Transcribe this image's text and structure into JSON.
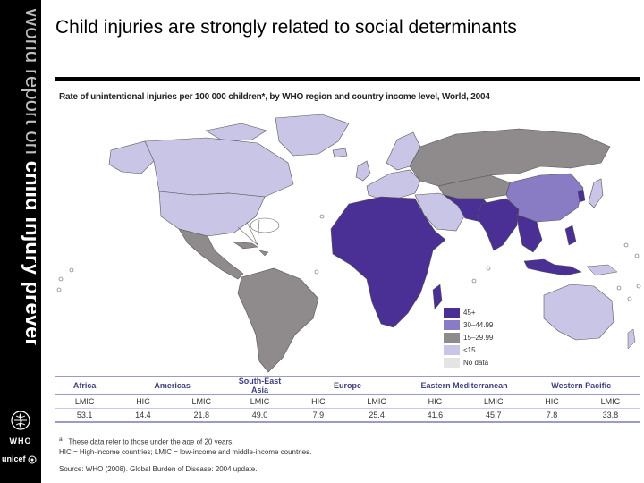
{
  "slide": {
    "title": "Child injuries are strongly related to social determinants"
  },
  "sidebar": {
    "title_part1": "World report on ",
    "title_part2": "child injury prevention",
    "who_label": "WHO",
    "unicef_label": "unicef"
  },
  "figure": {
    "title": "Rate of unintentional injuries per 100 000 children*, by WHO region and country income level, World, 2004",
    "legend": [
      {
        "label": "45+",
        "color": "#4a2f94"
      },
      {
        "label": "30–44.99",
        "color": "#8a7cc4"
      },
      {
        "label": "15–29.99",
        "color": "#8f8a8c"
      },
      {
        "label": "<15",
        "color": "#c9c5e6"
      },
      {
        "label": "No data",
        "color": "#e4e4e4"
      }
    ]
  },
  "table": {
    "regions": [
      {
        "name": "Africa",
        "span": 1
      },
      {
        "name": "Americas",
        "span": 2
      },
      {
        "name": "South-East Asia",
        "span": 1
      },
      {
        "name": "Europe",
        "span": 2
      },
      {
        "name": "Eastern Mediterranean",
        "span": 2
      },
      {
        "name": "Western Pacific",
        "span": 2
      }
    ],
    "levels": [
      "LMIC",
      "HIC",
      "LMIC",
      "LMIC",
      "HIC",
      "LMIC",
      "HIC",
      "LMIC",
      "HIC",
      "LMIC"
    ],
    "values": [
      "53.1",
      "14.4",
      "21.8",
      "49.0",
      "7.9",
      "25.4",
      "41.6",
      "45.7",
      "7.8",
      "33.8"
    ]
  },
  "notes": {
    "footnote_mark": "a",
    "line1": "These data refer to those under the age of 20 years.",
    "line2": "HIC = High-income countries; LMIC = low-income and middle-income countries.",
    "source": "Source: WHO (2008). Global Burden of Disease: 2004 update."
  }
}
